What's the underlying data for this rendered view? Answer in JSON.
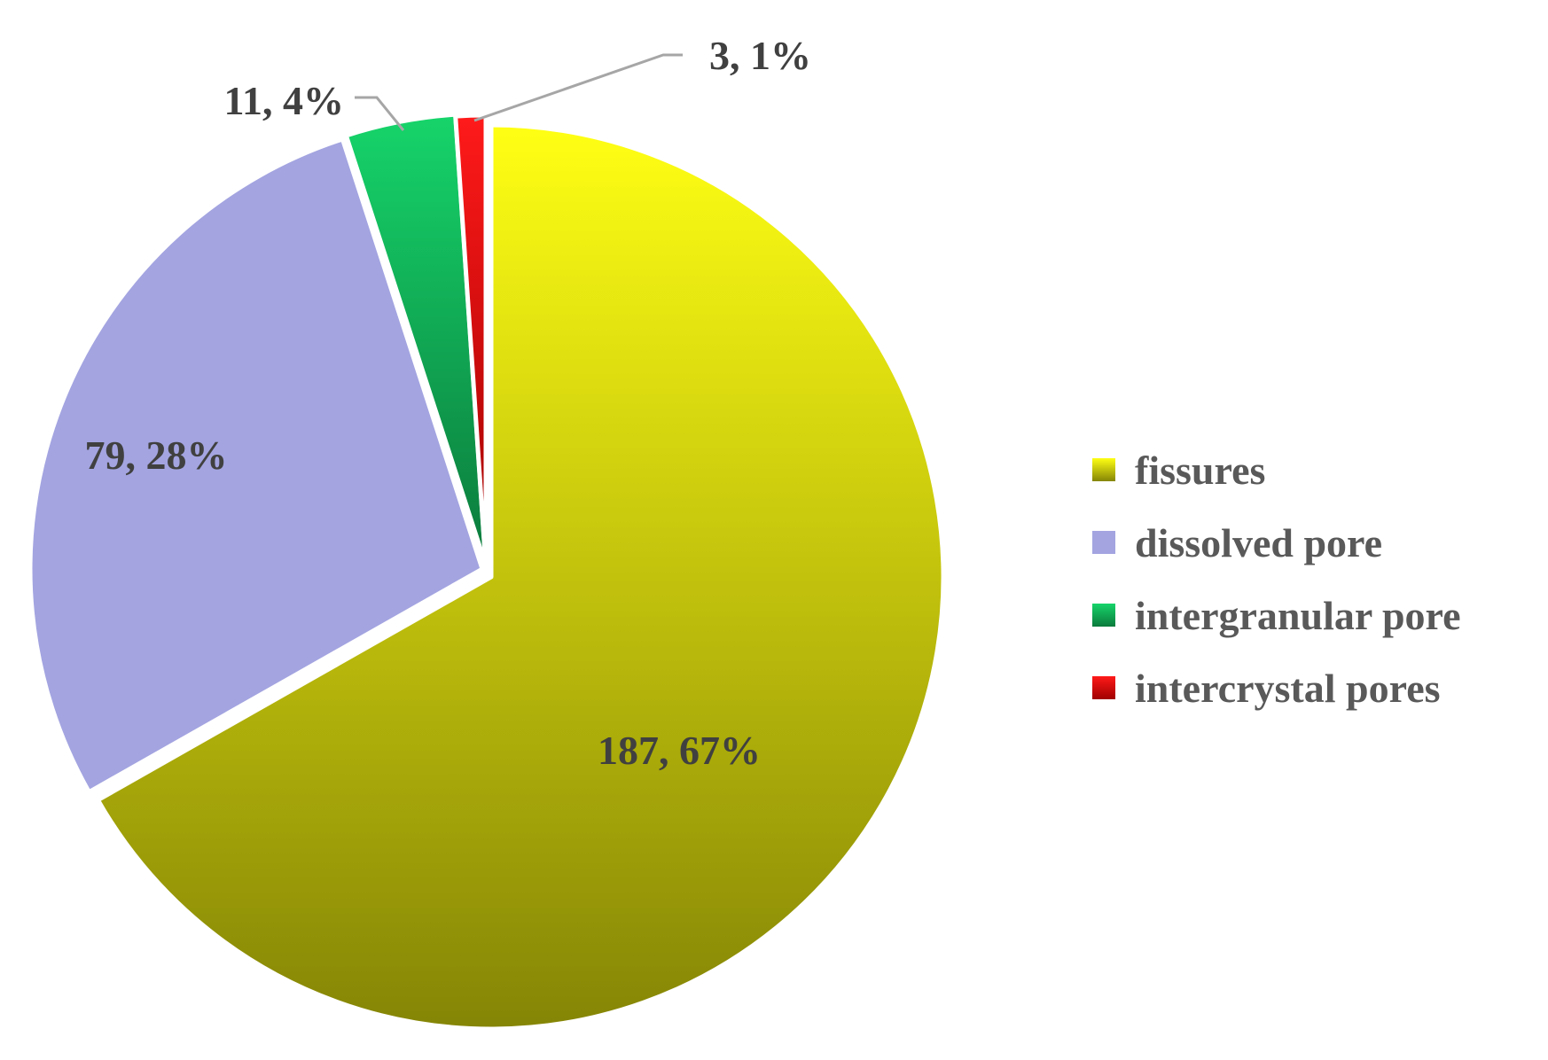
{
  "chart_data": {
    "type": "pie",
    "start_angle_deg": 0,
    "direction": "clockwise",
    "legend_position": "right",
    "slices": [
      {
        "name": "fissures",
        "value": 187,
        "percent_label": "67%",
        "label": "187, 67%",
        "color_top": "#ffff14",
        "color_bottom": "#858506"
      },
      {
        "name": "dissolved pore",
        "value": 79,
        "percent_label": "28%",
        "label": "79, 28%",
        "color_top": "#a3a4e0",
        "color_bottom": "#a3a4e0"
      },
      {
        "name": "intergranular pore",
        "value": 11,
        "percent_label": "4%",
        "label": "11, 4%",
        "color_top": "#16d46a",
        "color_bottom": "#0b7a3c"
      },
      {
        "name": "intercrystal pores",
        "value": 3,
        "percent_label": "1%",
        "label": "3, 1%",
        "color_top": "#ff1a1a",
        "color_bottom": "#a00000"
      }
    ],
    "colors": {
      "label_text": "#404040",
      "legend_text": "#595959",
      "leader_line": "#a6a6a6",
      "slice_border": "#ffffff"
    }
  }
}
